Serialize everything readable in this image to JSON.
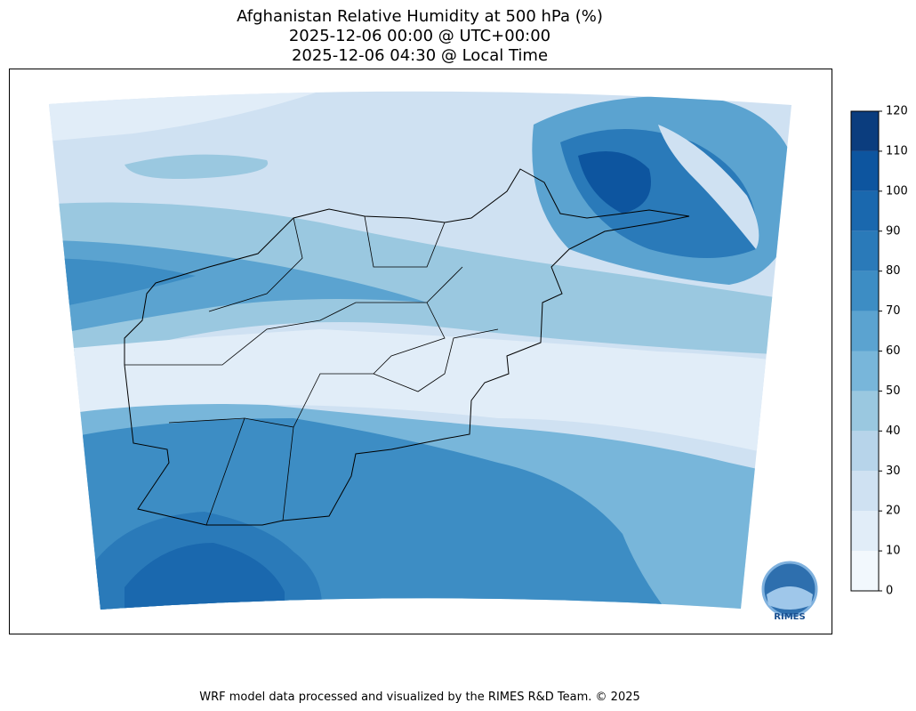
{
  "header": {
    "title_lines": [
      "Afghanistan Relative Humidity at 500 hPa (%)",
      "2025-12-06 00:00 @ UTC+00:00",
      "2025-12-06 04:30 @ Local Time"
    ]
  },
  "colorbar": {
    "lim": [
      0,
      120
    ],
    "ticks": [
      0,
      10,
      20,
      30,
      40,
      50,
      60,
      70,
      80,
      90,
      100,
      110,
      120
    ],
    "colors": [
      "#f2f8fd",
      "#e1edf8",
      "#cfe1f2",
      "#b7d4ea",
      "#9ac8e0",
      "#78b6da",
      "#5ba3d0",
      "#3d8dc4",
      "#2a7ab9",
      "#1a68ae",
      "#0d559f",
      "#0b3d7e"
    ]
  },
  "logo": {
    "text": "RIMES"
  },
  "footer": "WRF model data processed and visualized by the RIMES R&D Team. © 2025"
}
